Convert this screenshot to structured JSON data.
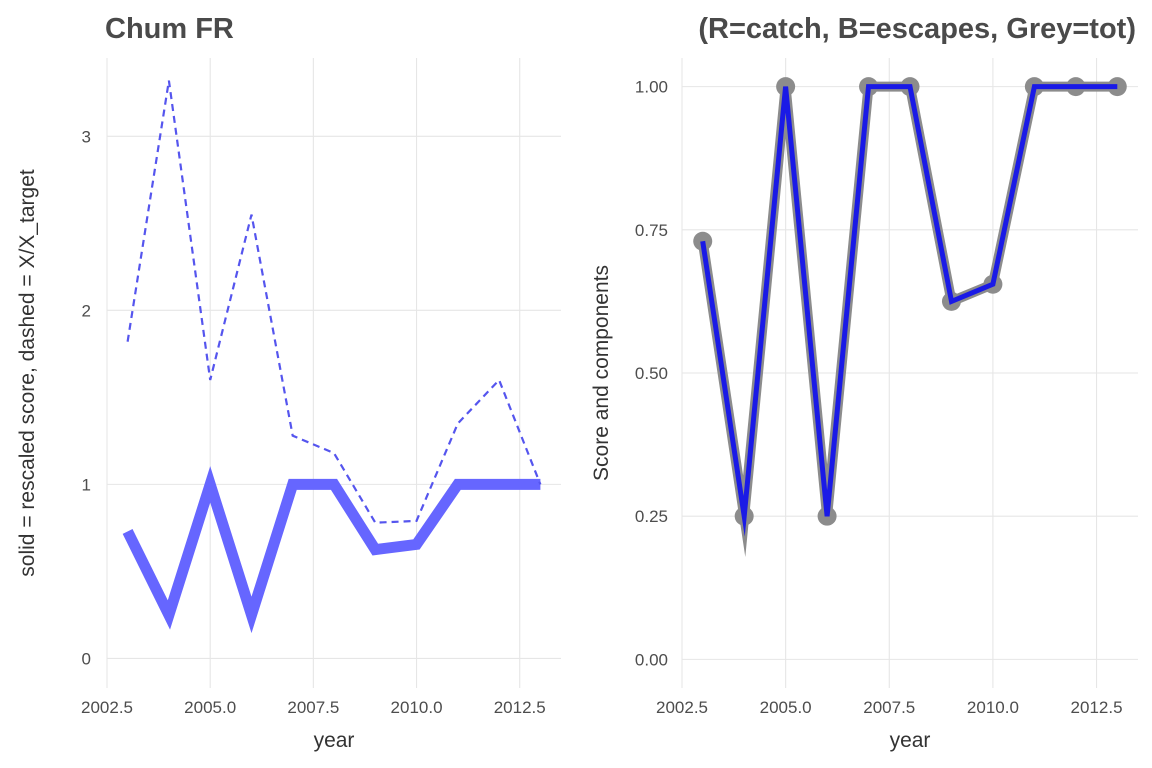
{
  "chart_data": [
    {
      "type": "line",
      "title": "Chum FR",
      "xlabel": "year",
      "ylabel": "solid = rescaled score, dashed = X/X_target",
      "xlim": [
        2002.5,
        2013.5
      ],
      "ylim": [
        -0.17,
        3.45
      ],
      "x_ticks": [
        2002.5,
        2005.0,
        2007.5,
        2010.0,
        2012.5
      ],
      "x_tick_labels": [
        "2002.5",
        "2005.0",
        "2007.5",
        "2010.0",
        "2012.5"
      ],
      "y_ticks": [
        0,
        1,
        2,
        3
      ],
      "y_tick_labels": [
        "0",
        "1",
        "2",
        "3"
      ],
      "grid": true,
      "x": [
        2003,
        2004,
        2005,
        2006,
        2007,
        2008,
        2009,
        2010,
        2011,
        2012,
        2013
      ],
      "series": [
        {
          "style": "solid",
          "color": "#6666ff",
          "values": [
            0.73,
            0.25,
            1.0,
            0.25,
            1.0,
            1.0,
            0.625,
            0.655,
            1.0,
            1.0,
            1.0
          ]
        },
        {
          "style": "dashed",
          "color": "#5555ee",
          "values": [
            1.82,
            3.32,
            1.6,
            2.55,
            1.28,
            1.18,
            0.78,
            0.79,
            1.35,
            1.6,
            1.0
          ]
        }
      ]
    },
    {
      "type": "line",
      "title": "(R=catch, B=escapes, Grey=tot)",
      "xlabel": "year",
      "ylabel": "Score and components",
      "xlim": [
        2002.5,
        2013.5
      ],
      "ylim": [
        -0.05,
        1.05
      ],
      "x_ticks": [
        2002.5,
        2005.0,
        2007.5,
        2010.0,
        2012.5
      ],
      "x_tick_labels": [
        "2002.5",
        "2005.0",
        "2007.5",
        "2010.0",
        "2012.5"
      ],
      "y_ticks": [
        0.0,
        0.25,
        0.5,
        0.75,
        1.0
      ],
      "y_tick_labels": [
        "0.00",
        "0.25",
        "0.50",
        "0.75",
        "1.00"
      ],
      "grid": true,
      "x": [
        2003,
        2004,
        2005,
        2006,
        2007,
        2008,
        2009,
        2010,
        2011,
        2012,
        2013
      ],
      "series": [
        {
          "style": "grey-line-points",
          "color": "#8c8c8c",
          "values": [
            0.73,
            0.25,
            1.0,
            0.25,
            1.0,
            1.0,
            0.625,
            0.655,
            1.0,
            1.0,
            1.0
          ]
        },
        {
          "style": "solid",
          "color": "#1a1ae6",
          "values": [
            0.73,
            0.25,
            1.0,
            0.25,
            1.0,
            1.0,
            0.625,
            0.655,
            1.0,
            1.0,
            1.0
          ]
        }
      ]
    }
  ]
}
